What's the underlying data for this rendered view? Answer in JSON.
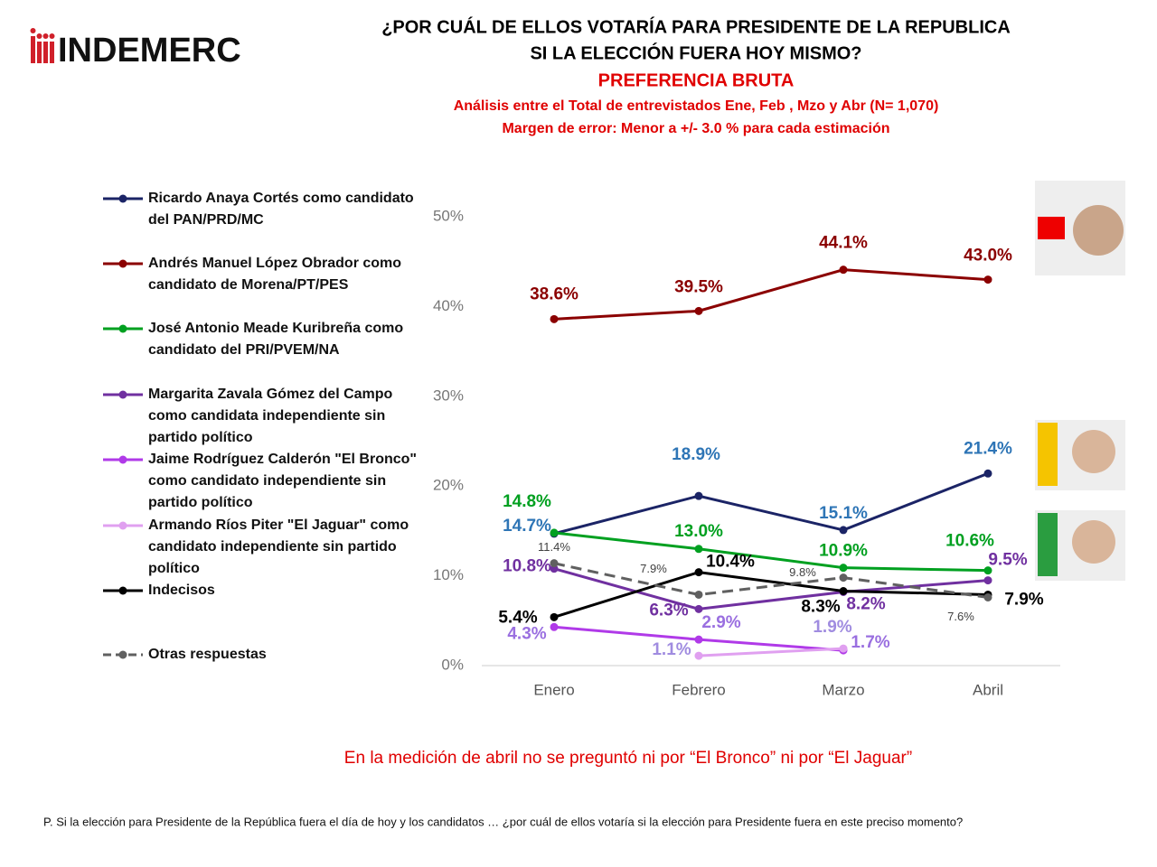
{
  "logo": "INDEMERC",
  "chart_data": {
    "type": "line",
    "title": [
      "¿POR CUÁL DE ELLOS VOTARÍA PARA PRESIDENTE DE LA REPUBLICA",
      "SI LA ELECCIÓN FUERA HOY MISMO?"
    ],
    "subtitle": "PREFERENCIA BRUTA",
    "notes": [
      "Análisis entre el Total de entrevistados Ene, Feb , Mzo y Abr  (N= 1,070)",
      "Margen de error: Menor a +/- 3.0 % para cada estimación"
    ],
    "categories": [
      "Enero",
      "Febrero",
      "Marzo",
      "Abril"
    ],
    "ylim": [
      0,
      50
    ],
    "yticks": [
      {
        "value": 0,
        "label": "0%"
      },
      {
        "value": 10,
        "label": "10%"
      },
      {
        "value": 20,
        "label": "20%"
      },
      {
        "value": 30,
        "label": "30%"
      },
      {
        "value": 40,
        "label": "40%"
      },
      {
        "value": 50,
        "label": "50%"
      }
    ],
    "series": [
      {
        "name": "Ricardo Anaya Cortés como candidato del PAN/PRD/MC",
        "color": "#1b2466",
        "label_color": "#2e75b6",
        "values": [
          14.7,
          18.9,
          15.1,
          21.4
        ],
        "value_labels": [
          "14.7%",
          "18.9%",
          "15.1%",
          "21.4%"
        ]
      },
      {
        "name": "Andrés Manuel López Obrador como candidato de Morena/PT/PES",
        "color": "#8b0000",
        "label_color": "#8b0000",
        "values": [
          38.6,
          39.5,
          44.1,
          43.0
        ],
        "value_labels": [
          "38.6%",
          "39.5%",
          "44.1%",
          "43.0%"
        ]
      },
      {
        "name": "José Antonio Meade Kuribreña como candidato del PRI/PVEM/NA",
        "color": "#00a020",
        "label_color": "#00a020",
        "values": [
          14.8,
          13.0,
          10.9,
          10.6
        ],
        "value_labels": [
          "14.8%",
          "13.0%",
          "10.9%",
          "10.6%"
        ]
      },
      {
        "name": "Margarita Zavala Gómez del Campo como candidata independiente sin partido político",
        "color": "#7030a0",
        "label_color": "#7030a0",
        "values": [
          10.8,
          6.3,
          8.2,
          9.5
        ],
        "value_labels": [
          "10.8%",
          "6.3%",
          "8.2%",
          "9.5%"
        ]
      },
      {
        "name": "Jaime Rodríguez Calderón \"El Bronco\" como candidato independiente sin partido político",
        "color": "#b03ae8",
        "label_color": "#9a6fe0",
        "values": [
          4.3,
          2.9,
          1.7,
          null
        ],
        "value_labels": [
          "4.3%",
          "2.9%",
          "1.7%",
          null
        ]
      },
      {
        "name": "Armando Ríos Piter \"El Jaguar\" como candidato independiente sin partido político",
        "color": "#e0a0f0",
        "label_color": "#a08ce0",
        "values": [
          null,
          1.1,
          1.9,
          null
        ],
        "value_labels": [
          null,
          "1.1%",
          "1.9%",
          null
        ]
      },
      {
        "name": "Indecisos",
        "color": "#000000",
        "label_color": "#000000",
        "values": [
          5.4,
          10.4,
          8.3,
          7.9
        ],
        "value_labels": [
          "5.4%",
          "10.4%",
          "8.3%",
          "7.9%"
        ]
      },
      {
        "name": "Otras respuestas",
        "color": "#606060",
        "label_color": "#404040",
        "dashed": true,
        "values": [
          11.4,
          7.9,
          9.8,
          7.6
        ],
        "value_labels": [
          "11.4%",
          "7.9%",
          "9.8%",
          "7.6%"
        ]
      }
    ],
    "annotation": "En la medición de abril no se preguntó ni por “El Bronco” ni por “El Jaguar”",
    "footnote": "P. Si la elección para Presidente de la República fuera el día de hoy y los candidatos … ¿por cuál de ellos votaría si la elección para Presidente fuera en este preciso momento?"
  }
}
